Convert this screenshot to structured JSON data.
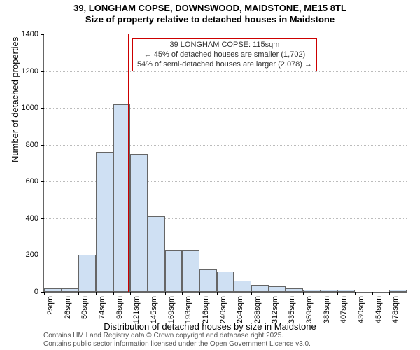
{
  "title_line1": "39, LONGHAM COPSE, DOWNSWOOD, MAIDSTONE, ME15 8TL",
  "title_line2": "Size of property relative to detached houses in Maidstone",
  "title_fontsize": 13,
  "ylabel": "Number of detached properties",
  "xlabel": "Distribution of detached houses by size in Maidstone",
  "axis_label_fontsize": 13,
  "chart": {
    "type": "histogram",
    "ymin": 0,
    "ymax": 1400,
    "yticks": [
      0,
      200,
      400,
      600,
      800,
      1000,
      1200,
      1400
    ],
    "xtick_labels": [
      "2sqm",
      "26sqm",
      "50sqm",
      "74sqm",
      "98sqm",
      "121sqm",
      "145sqm",
      "169sqm",
      "193sqm",
      "216sqm",
      "240sqm",
      "264sqm",
      "288sqm",
      "312sqm",
      "335sqm",
      "359sqm",
      "383sqm",
      "407sqm",
      "430sqm",
      "454sqm",
      "478sqm"
    ],
    "bin_values": [
      20,
      20,
      200,
      760,
      1020,
      750,
      410,
      230,
      230,
      120,
      110,
      60,
      40,
      30,
      20,
      10,
      10,
      10,
      0,
      0,
      10
    ],
    "bar_fill": "#cfe0f3",
    "bar_border": "#666666",
    "grid_color": "#bbbbbb",
    "plot_border_color": "#666666",
    "background_color": "#ffffff",
    "marker": {
      "x_value": 115,
      "x_min": 2,
      "x_max": 490,
      "line_color": "#cc0000",
      "line_width": 2
    },
    "annotation": {
      "line1": "39 LONGHAM COPSE: 115sqm",
      "line2": "← 45% of detached houses are smaller (1,702)",
      "line3": "54% of semi-detached houses are larger (2,078) →",
      "border_color": "#cc0000",
      "text_color": "#333333",
      "fontsize": 11
    }
  },
  "credit_line1": "Contains HM Land Registry data © Crown copyright and database right 2025.",
  "credit_line2": "Contains public sector information licensed under the Open Government Licence v3.0.",
  "credit_color": "#555555",
  "credit_fontsize": 10
}
